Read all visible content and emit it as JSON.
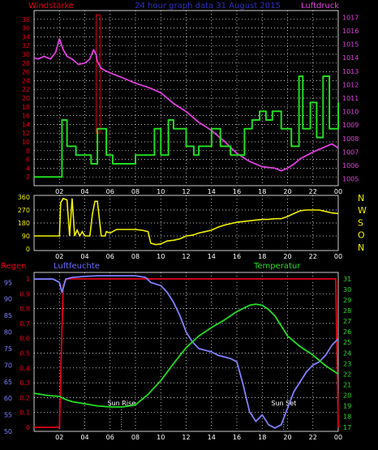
{
  "header": {
    "left_label": "Windstärke",
    "title": "24 hour graph data 31 August 2015",
    "right_label": "Luftdruck"
  },
  "colors": {
    "background": "#000000",
    "red": "#e0001a",
    "blue": "#2f2fc8",
    "magenta": "#e040e0",
    "green": "#22dd22",
    "yellow": "#f0f000",
    "lavender": "#8080ff",
    "grid": "#ffffff"
  },
  "chart_data": [
    {
      "type": "line",
      "name": "wind-and-pressure",
      "x_ticks": [
        "02",
        "04",
        "06",
        "08",
        "10",
        "12",
        "14",
        "16",
        "18",
        "20",
        "22",
        "00"
      ],
      "left_axis": {
        "label": "Windstärke",
        "ticks": [
          2,
          4,
          6,
          8,
          10,
          12,
          14,
          16,
          18,
          20,
          22,
          24,
          26,
          28,
          30,
          32,
          34,
          36,
          38
        ],
        "range": [
          0,
          40
        ]
      },
      "right_axis": {
        "label": "Luftdruck",
        "ticks": [
          1005,
          1006,
          1007,
          1008,
          1009,
          1010,
          1011,
          1012,
          1013,
          1014,
          1015,
          1016,
          1017
        ],
        "range": [
          1004.5,
          1017.5
        ]
      },
      "series": [
        {
          "color": "#e040e0",
          "axis": "right",
          "x": [
            0,
            0.3,
            0.8,
            1.3,
            1.7,
            2.0,
            2.3,
            2.6,
            3.0,
            3.5,
            4.0,
            4.4,
            4.7,
            4.9,
            5.0,
            5.3,
            5.7,
            6.2,
            7.0,
            8.0,
            9.0,
            10.0,
            11.0,
            12.0,
            13.0,
            14.0,
            15.0,
            16.0,
            17.0,
            18.0,
            19.0,
            19.5,
            20.0,
            20.5,
            21.0,
            22.0,
            23.0,
            23.5,
            24
          ],
          "values": [
            1014.0,
            1013.9,
            1014.1,
            1013.9,
            1014.4,
            1015.4,
            1014.6,
            1014.1,
            1013.9,
            1013.5,
            1013.6,
            1013.9,
            1014.6,
            1014.2,
            1013.7,
            1013.2,
            1013.0,
            1012.8,
            1012.5,
            1012.1,
            1011.8,
            1011.4,
            1010.6,
            1010.0,
            1009.2,
            1008.6,
            1007.8,
            1006.9,
            1006.3,
            1005.9,
            1005.8,
            1005.6,
            1005.8,
            1006.1,
            1006.5,
            1007.0,
            1007.4,
            1007.6,
            1007.3
          ]
        },
        {
          "color": "#22dd22",
          "axis": "left",
          "step": true,
          "x": [
            0,
            1.6,
            2.2,
            2.6,
            3.3,
            4.5,
            5.0,
            5.7,
            6.2,
            7.0,
            8.0,
            9.0,
            9.5,
            10.0,
            10.6,
            11.0,
            12.0,
            12.6,
            13.0,
            14.0,
            14.7,
            15.0,
            15.5,
            16.0,
            16.6,
            17.2,
            17.8,
            18.3,
            18.8,
            19.5,
            20.0,
            20.3,
            20.9,
            21.2,
            21.8,
            22.3,
            22.8,
            23.3,
            24
          ],
          "values": [
            2,
            2,
            15,
            9,
            7,
            5,
            13,
            7,
            5,
            5,
            7,
            7,
            13,
            7,
            15,
            13,
            9,
            7,
            9,
            13,
            9,
            9,
            7,
            7,
            13,
            15,
            17,
            15,
            17,
            13,
            13,
            9,
            25,
            13,
            19,
            11,
            25,
            13,
            19
          ]
        }
      ],
      "marker": {
        "color": "#e0001a",
        "x_start": 4.9,
        "x_end": 5.2,
        "ymin": 12,
        "ymax": 39
      }
    },
    {
      "type": "line",
      "name": "wind-direction",
      "x_ticks": [
        "02",
        "04",
        "06",
        "08",
        "10",
        "12",
        "14",
        "16",
        "18",
        "20",
        "22",
        "00"
      ],
      "left_axis": {
        "ticks": [
          0,
          90,
          180,
          270,
          360
        ],
        "range": [
          0,
          360
        ]
      },
      "right_labels": [
        "N",
        "W",
        "S",
        "O",
        "N"
      ],
      "series": [
        {
          "color": "#f0f000",
          "x": [
            0,
            0.5,
            1.0,
            1.5,
            2.0,
            2.1,
            2.3,
            2.6,
            2.8,
            3.0,
            3.2,
            3.4,
            3.6,
            3.8,
            4.0,
            4.4,
            4.6,
            4.8,
            5.0,
            5.3,
            5.6,
            5.7,
            6.0,
            6.5,
            7.0,
            7.5,
            8.0,
            8.5,
            9.0,
            9.2,
            9.6,
            10.0,
            10.5,
            11.0,
            11.5,
            12.0,
            12.5,
            13.0,
            13.5,
            14.0,
            14.5,
            15.0,
            15.5,
            16.0,
            16.5,
            17.0,
            17.5,
            18.0,
            18.5,
            19.0,
            19.5,
            20.0,
            20.5,
            21.0,
            21.5,
            22.0,
            22.5,
            23.0,
            23.5,
            24
          ],
          "values": [
            90,
            90,
            90,
            90,
            90,
            320,
            350,
            340,
            90,
            350,
            90,
            130,
            90,
            120,
            90,
            90,
            240,
            330,
            330,
            90,
            90,
            120,
            110,
            135,
            135,
            135,
            135,
            130,
            120,
            40,
            30,
            35,
            55,
            60,
            70,
            90,
            95,
            110,
            120,
            130,
            150,
            165,
            175,
            185,
            190,
            195,
            200,
            205,
            205,
            210,
            210,
            225,
            245,
            265,
            270,
            270,
            270,
            260,
            250,
            245
          ]
        }
      ]
    },
    {
      "type": "line",
      "name": "rain-humidity-temperature",
      "x_ticks": [
        "02",
        "04",
        "06",
        "08",
        "10",
        "12",
        "14",
        "16",
        "18",
        "20",
        "22",
        "00"
      ],
      "rain_axis": {
        "label": "Regen",
        "ticks": [
          0,
          0.1,
          0.2,
          0.3,
          0.4,
          0.5,
          0.6,
          0.7,
          0.8,
          0.9,
          1
        ],
        "range": [
          0,
          1
        ]
      },
      "humidity_axis": {
        "label": "Luftfeuchte",
        "ticks": [
          50,
          55,
          60,
          65,
          70,
          75,
          80,
          85,
          90,
          95
        ],
        "range": [
          50,
          98
        ]
      },
      "temperature_axis": {
        "label": "Temperatur",
        "ticks": [
          17,
          18,
          19,
          20,
          21,
          22,
          23,
          24,
          25,
          26,
          27,
          28,
          29,
          30,
          31
        ],
        "range": [
          16.6,
          31.6
        ]
      },
      "annotations": [
        {
          "text": "Sun Rise",
          "x": 6.9
        },
        {
          "text": "Sun Set",
          "x": 19.7
        }
      ],
      "series": [
        {
          "color": "#e0001a",
          "axis": "rain",
          "x": [
            0,
            2.0,
            2.15,
            2.3,
            2.5,
            23.8,
            24
          ],
          "values": [
            0,
            0,
            0.5,
            0.95,
            1.0,
            1.0,
            0
          ]
        },
        {
          "color": "#8080ff",
          "axis": "humidity",
          "x": [
            0,
            1,
            1.5,
            2.0,
            2.2,
            2.5,
            3,
            4,
            5,
            6,
            7,
            8,
            8.8,
            9.2,
            10,
            10.5,
            11,
            11.5,
            12,
            12.5,
            13,
            13.5,
            14,
            14.5,
            15,
            15.5,
            16,
            16.5,
            17,
            17.5,
            18,
            18.5,
            19,
            19.5,
            20,
            20.5,
            21,
            21.5,
            22,
            22.5,
            23,
            23.5,
            24
          ],
          "values": [
            96,
            96,
            96,
            95,
            92,
            96,
            96.5,
            96.8,
            97,
            97,
            97,
            97,
            96.5,
            95,
            94,
            92,
            89,
            85,
            80,
            77,
            75,
            74.5,
            74,
            73,
            72.5,
            72,
            71,
            64,
            56,
            53,
            55,
            52,
            51,
            52,
            57,
            62,
            65,
            68,
            70,
            71,
            73,
            76,
            78
          ]
        },
        {
          "color": "#22dd22",
          "axis": "temperature",
          "x": [
            0,
            1,
            2,
            2.5,
            3,
            4,
            5,
            6,
            7,
            8,
            8.5,
            9,
            10,
            11,
            12,
            13,
            14,
            15,
            16,
            17,
            17.5,
            18,
            18.5,
            19,
            20,
            21,
            22,
            23,
            24
          ],
          "values": [
            20.2,
            20.0,
            19.9,
            19.6,
            19.4,
            19.2,
            19.0,
            18.9,
            18.9,
            19.1,
            19.6,
            20.1,
            21.4,
            23.0,
            24.5,
            25.6,
            26.4,
            27.1,
            27.9,
            28.5,
            28.6,
            28.5,
            28.1,
            27.5,
            25.6,
            24.6,
            23.8,
            22.8,
            22.0
          ]
        }
      ]
    }
  ]
}
